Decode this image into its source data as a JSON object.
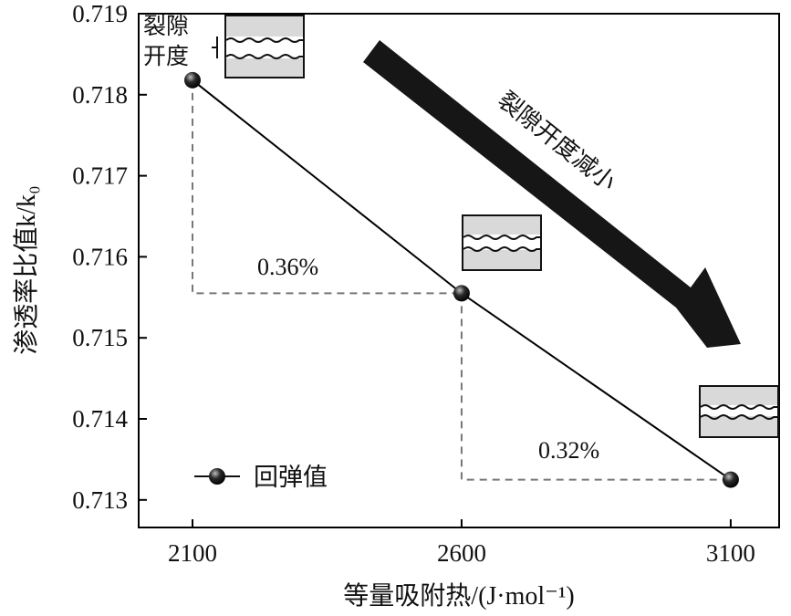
{
  "chart_data": {
    "type": "line",
    "x": [
      2100,
      2600,
      3100
    ],
    "series": [
      {
        "name": "回弹值",
        "values": [
          0.71818,
          0.71555,
          0.71325
        ]
      }
    ],
    "xlabel": "等量吸附热/(J·mol⁻¹)",
    "ylabel": "渗透率比值k/k₀",
    "xlim": [
      2000,
      3190
    ],
    "ylim": [
      0.71266,
      0.719
    ],
    "xticks": [
      2100,
      2600,
      3100
    ],
    "xtick_labels": [
      "2100",
      "2600",
      "3100"
    ],
    "yticks": [
      0.713,
      0.714,
      0.715,
      0.716,
      0.717,
      0.718,
      0.719
    ],
    "ytick_labels": [
      "0.713",
      "0.714",
      "0.715",
      "0.716",
      "0.717",
      "0.718",
      "0.719"
    ],
    "grid": false,
    "legend": "bottom-left",
    "annotations": [
      {
        "text": "0.36%"
      },
      {
        "text": "0.32%"
      },
      {
        "text": "裂隙开度减小"
      },
      {
        "text": "裂隙"
      },
      {
        "text": "开度"
      }
    ],
    "colors": {
      "line": "#000000",
      "marker": "#111111",
      "guide": "#777777",
      "arrow": "#161616",
      "fracture_box": "#d9d9d9"
    }
  }
}
